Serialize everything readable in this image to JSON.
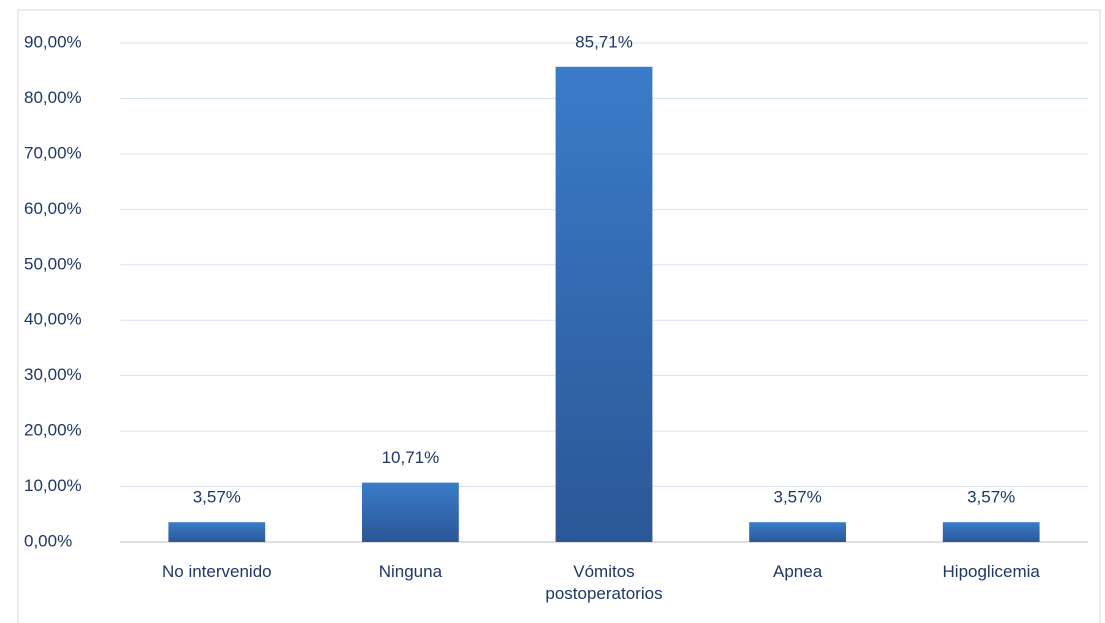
{
  "chart_data": {
    "type": "bar",
    "categories": [
      "No intervenido",
      "Ninguna",
      "Vómitos postoperatorios",
      "Apnea",
      "Hipoglicemia"
    ],
    "values": [
      3.57,
      10.71,
      85.71,
      3.57,
      3.57
    ],
    "value_labels": [
      "3,57%",
      "10,71%",
      "85,71%",
      "3,57%",
      "3,57%"
    ],
    "color": "#3a7cc9",
    "ylim": [
      0,
      90
    ],
    "yticks": [
      {
        "value": 0,
        "label": "0,00%"
      },
      {
        "value": 10,
        "label": "10,00%"
      },
      {
        "value": 20,
        "label": "20,00%"
      },
      {
        "value": 30,
        "label": "30,00%"
      },
      {
        "value": 40,
        "label": "40,00%"
      },
      {
        "value": 50,
        "label": "50,00%"
      },
      {
        "value": 60,
        "label": "60,00%"
      },
      {
        "value": 70,
        "label": "70,00%"
      },
      {
        "value": 80,
        "label": "80,00%"
      },
      {
        "value": 90,
        "label": "90,00%"
      }
    ],
    "grid": true
  }
}
